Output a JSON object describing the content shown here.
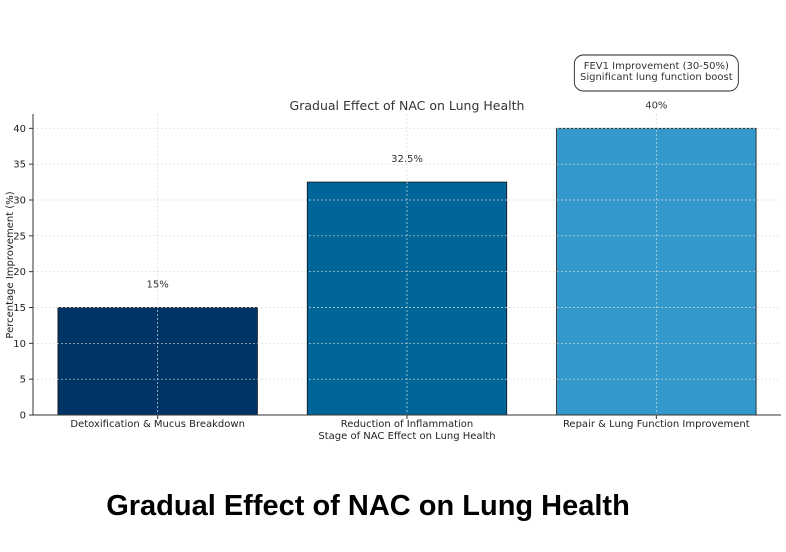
{
  "caption": "Gradual Effect of NAC on Lung Health",
  "chart_data": {
    "type": "bar",
    "title": "Gradual Effect of NAC on Lung Health",
    "xlabel": "Stage of NAC Effect on Lung Health",
    "ylabel": "Percentage Improvement (%)",
    "ylim": [
      0,
      42
    ],
    "yticks": [
      0,
      5,
      10,
      15,
      20,
      25,
      30,
      35,
      40
    ],
    "grid": true,
    "categories": [
      "Detoxification & Mucus Breakdown",
      "Reduction of Inflammation",
      "Repair & Lung Function Improvement"
    ],
    "values": [
      15,
      32.5,
      40
    ],
    "data_labels": [
      "15%",
      "32.5%",
      "40%"
    ],
    "colors": [
      "#003366",
      "#006699",
      "#3399cc"
    ],
    "annotation": {
      "lines": [
        "FEV1 Improvement (30-50%)",
        "Significant lung function boost"
      ],
      "category_index": 2
    }
  }
}
